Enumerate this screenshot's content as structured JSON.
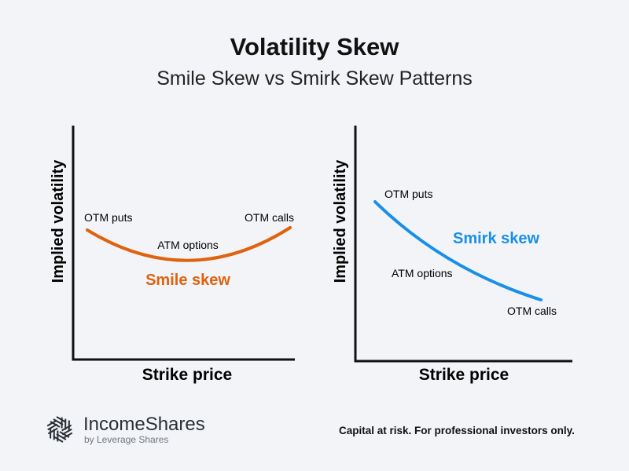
{
  "title": "Volatility Skew",
  "subtitle": "Smile Skew vs Smirk Skew Patterns",
  "colors": {
    "background": "#f2f4f7",
    "smile": "#e0620f",
    "smirk": "#1a8fea",
    "axis": "#111111"
  },
  "left_panel": {
    "y_label": "Implied volatility",
    "x_label": "Strike price",
    "curve_label": "Smile skew",
    "annotations": {
      "otm_puts": "OTM puts",
      "atm": "ATM options",
      "otm_calls": "OTM calls"
    }
  },
  "right_panel": {
    "y_label": "Implied volatility",
    "x_label": "Strike price",
    "curve_label": "Smirk skew",
    "annotations": {
      "otm_puts": "OTM puts",
      "atm": "ATM options",
      "otm_calls": "OTM calls"
    }
  },
  "footer": {
    "brand": "IncomeShares",
    "brand_sub": "by Leverage Shares",
    "logo_icon": "hexagonal-swirl-logo",
    "disclaimer": "Capital at risk. For professional investors only."
  }
}
